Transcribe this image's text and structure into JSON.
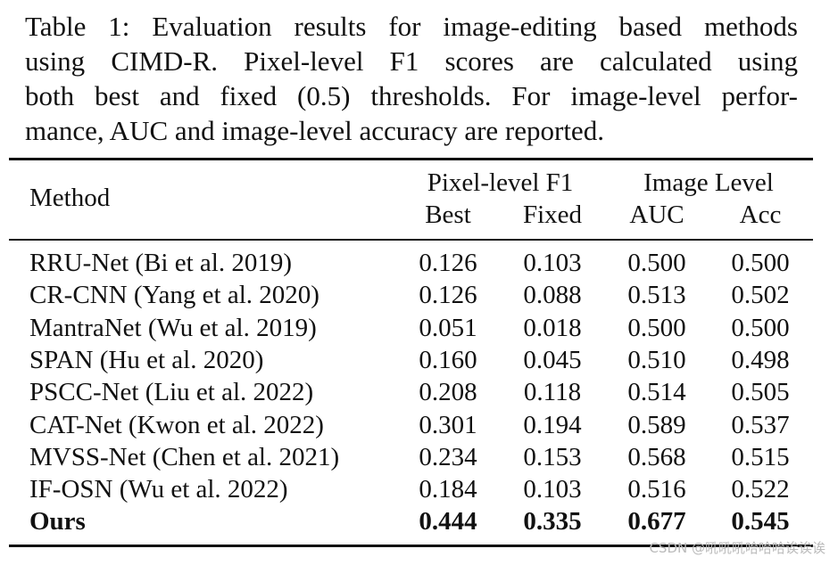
{
  "caption": {
    "lines": [
      "Table 1: Evaluation results for image-editing based methods",
      "using CIMD-R. Pixel-level F1 scores are calculated using",
      "both best and fixed (0.5) thresholds. For image-level perfor-",
      "mance, AUC and image-level accuracy are reported."
    ]
  },
  "table": {
    "header": {
      "method": "Method",
      "groups": [
        {
          "label": "Pixel-level F1",
          "columns": [
            "Best",
            "Fixed"
          ]
        },
        {
          "label": "Image Level",
          "columns": [
            "AUC",
            "Acc"
          ]
        }
      ]
    },
    "rows": [
      [
        "RRU-Net (Bi et al. 2019)",
        "0.126",
        "0.103",
        "0.500",
        "0.500"
      ],
      [
        "CR-CNN (Yang et al. 2020)",
        "0.126",
        "0.088",
        "0.513",
        "0.502"
      ],
      [
        "MantraNet (Wu et al. 2019)",
        "0.051",
        "0.018",
        "0.500",
        "0.500"
      ],
      [
        "SPAN (Hu et al. 2020)",
        "0.160",
        "0.045",
        "0.510",
        "0.498"
      ],
      [
        "PSCC-Net (Liu et al. 2022)",
        "0.208",
        "0.118",
        "0.514",
        "0.505"
      ],
      [
        "CAT-Net (Kwon et al. 2022)",
        "0.301",
        "0.194",
        "0.589",
        "0.537"
      ],
      [
        "MVSS-Net (Chen et al. 2021)",
        "0.234",
        "0.153",
        "0.568",
        "0.515"
      ],
      [
        "IF-OSN (Wu et al. 2022)",
        "0.184",
        "0.103",
        "0.516",
        "0.522"
      ],
      [
        "Ours",
        "0.444",
        "0.335",
        "0.677",
        "0.545"
      ]
    ]
  },
  "watermark": "CSDN @吼吼吼哈哈哈诶诶诶"
}
